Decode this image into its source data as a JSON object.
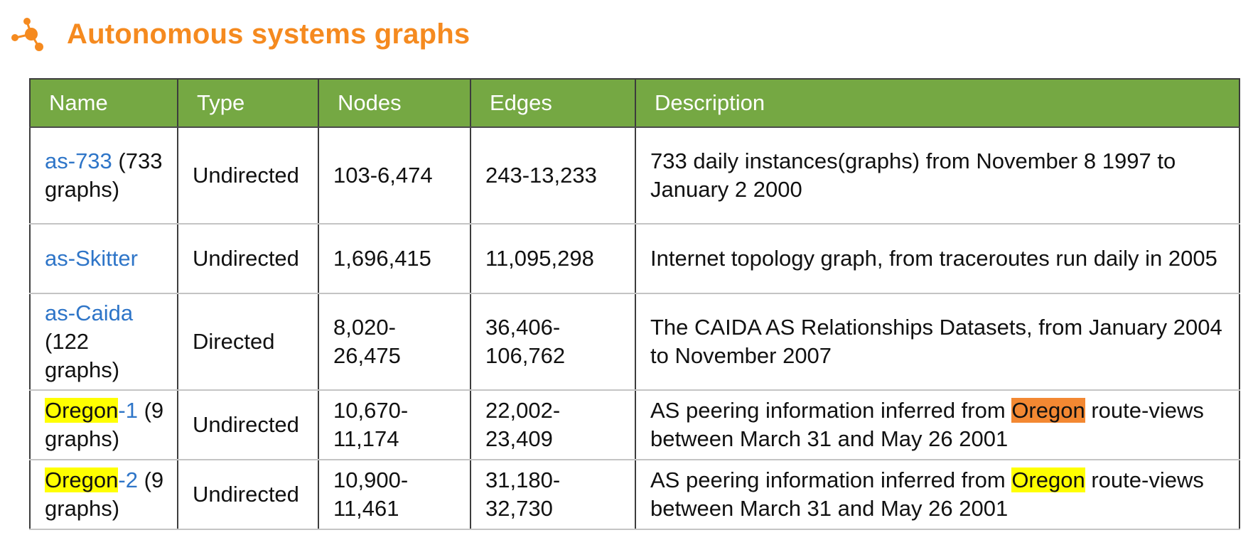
{
  "heading": {
    "title": "Autonomous systems graphs",
    "icon": "orange-molecule-bullet-icon",
    "accent_color": "#f58a1f"
  },
  "table": {
    "header_color": "#75a843",
    "link_color": "#2e75c8",
    "columns": [
      "Name",
      "Type",
      "Nodes",
      "Edges",
      "Description"
    ],
    "rows": [
      {
        "name_link": "as-733",
        "name_suffix": "(733 graphs)",
        "type": "Undirected",
        "nodes": "103-6,474",
        "edges": "243-13,233",
        "description": "733 daily instances(graphs) from November 8 1997 to January 2 2000"
      },
      {
        "name_link": "as-Skitter",
        "type": "Undirected",
        "nodes": "1,696,415",
        "edges": "11,095,298",
        "description": "Internet topology graph, from traceroutes run daily in 2005"
      },
      {
        "name_link": "as-Caida",
        "name_suffix": "(122 graphs)",
        "type": "Directed",
        "nodes": "8,020-26,475",
        "edges": "36,406-106,762",
        "description": "The CAIDA AS Relationships Datasets, from January 2004 to November 2007"
      },
      {
        "name_highlight": "Oregon",
        "name_link": "-1",
        "name_suffix": "(9 graphs)",
        "type": "Undirected",
        "nodes": "10,670-11,174",
        "edges": "22,002-23,409",
        "desc_before": "AS peering information inferred from",
        "desc_highlight": "Oregon",
        "desc_after": "route-views between March 31 and May 26 2001",
        "desc_highlight_color": "#f38832"
      },
      {
        "name_highlight": "Oregon",
        "name_link": "-2",
        "name_suffix": "(9 graphs)",
        "type": "Undirected",
        "nodes": "10,900-11,461",
        "edges": "31,180-32,730",
        "desc_before": "AS peering information inferred from",
        "desc_highlight": "Oregon",
        "desc_after": "route-views between March 31 and May 26 2001",
        "desc_highlight_color": "#ffff00"
      }
    ]
  }
}
